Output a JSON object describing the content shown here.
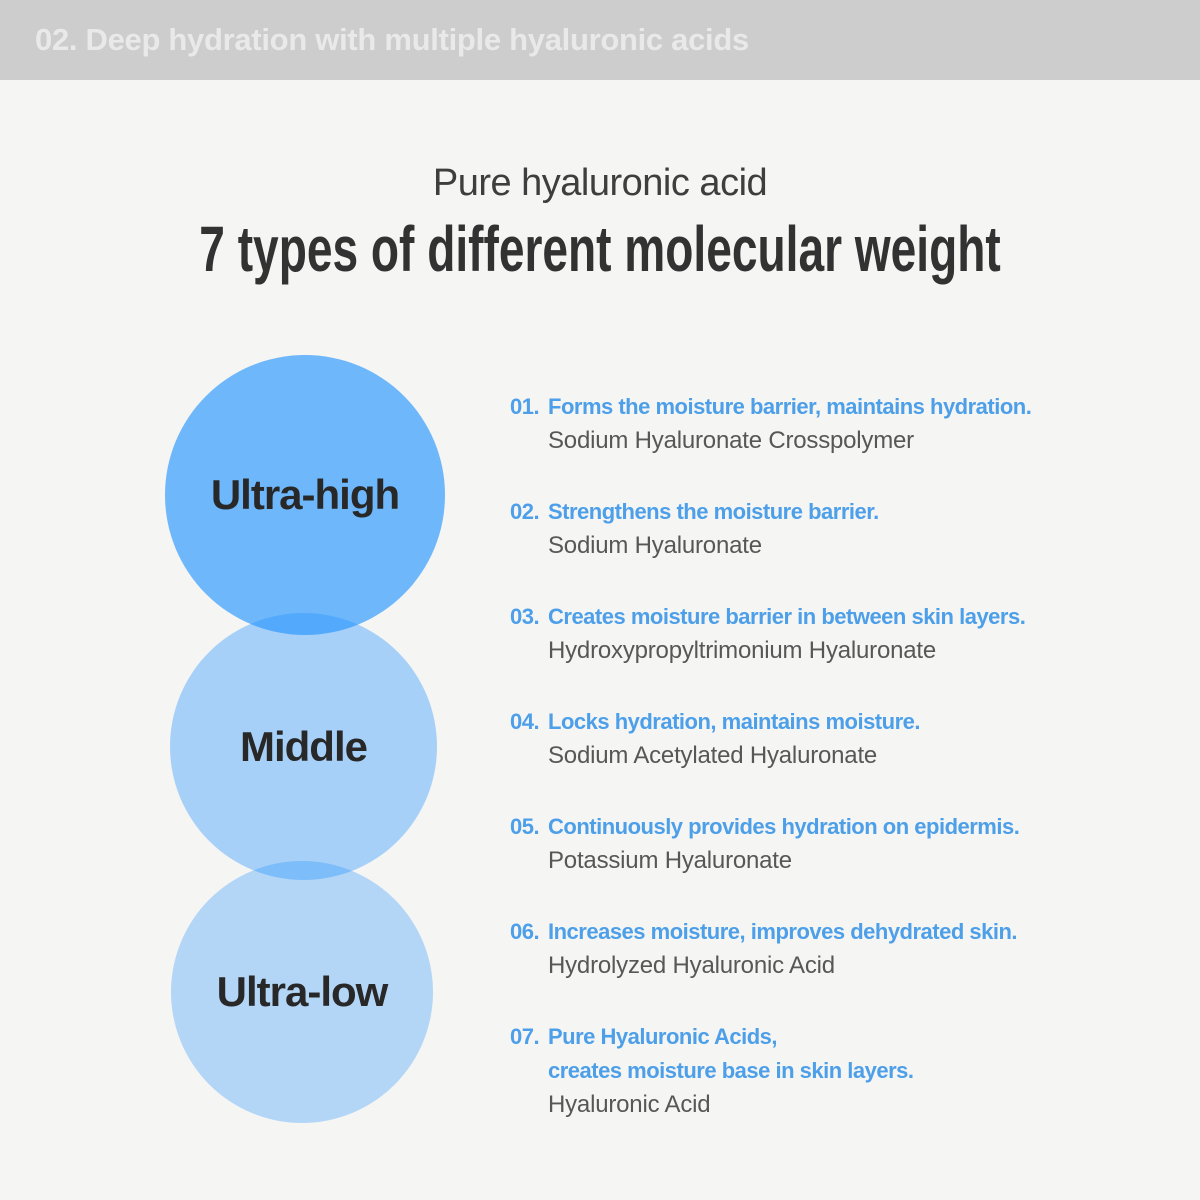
{
  "colors": {
    "background": "#F5F5F4",
    "header_bg": "#CDCDCD",
    "header_text": "#E9E9E9",
    "title_text": "#323232",
    "subtitle_text": "#3E3E3E",
    "accent_blue": "#4C9FE8",
    "circle_blue": "#2896FF",
    "circle_alphas": [
      0.66,
      0.39,
      0.32
    ],
    "circle_label_text": "#282828",
    "ingredient_text": "#575757"
  },
  "header": {
    "title": "02. Deep hydration with multiple hyaluronic acids"
  },
  "intro": {
    "subtitle": "Pure hyaluronic acid",
    "title": "7 types of different molecular weight"
  },
  "venn": {
    "circles": [
      {
        "label": "Ultra-high"
      },
      {
        "label": "Middle"
      },
      {
        "label": "Ultra-low"
      }
    ]
  },
  "items": [
    {
      "num": "01.",
      "heading": "Forms the moisture barrier, maintains hydration.",
      "ingredient": "Sodium Hyaluronate Crosspolymer"
    },
    {
      "num": "02.",
      "heading": "Strengthens the moisture barrier.",
      "ingredient": "Sodium Hyaluronate"
    },
    {
      "num": "03.",
      "heading": "Creates moisture barrier in between skin layers.",
      "ingredient": "Hydroxypropyltrimonium Hyaluronate"
    },
    {
      "num": "04.",
      "heading": "Locks hydration, maintains moisture.",
      "ingredient": "Sodium Acetylated Hyaluronate"
    },
    {
      "num": "05.",
      "heading": "Continuously provides hydration on epidermis.",
      "ingredient": "Potassium Hyaluronate"
    },
    {
      "num": "06.",
      "heading": "Increases moisture, improves dehydrated skin.",
      "ingredient": "Hydrolyzed Hyaluronic Acid"
    },
    {
      "num": "07.",
      "heading": "Pure Hyaluronic Acids,",
      "heading2": "creates moisture base in skin layers.",
      "ingredient": "Hyaluronic Acid"
    }
  ]
}
